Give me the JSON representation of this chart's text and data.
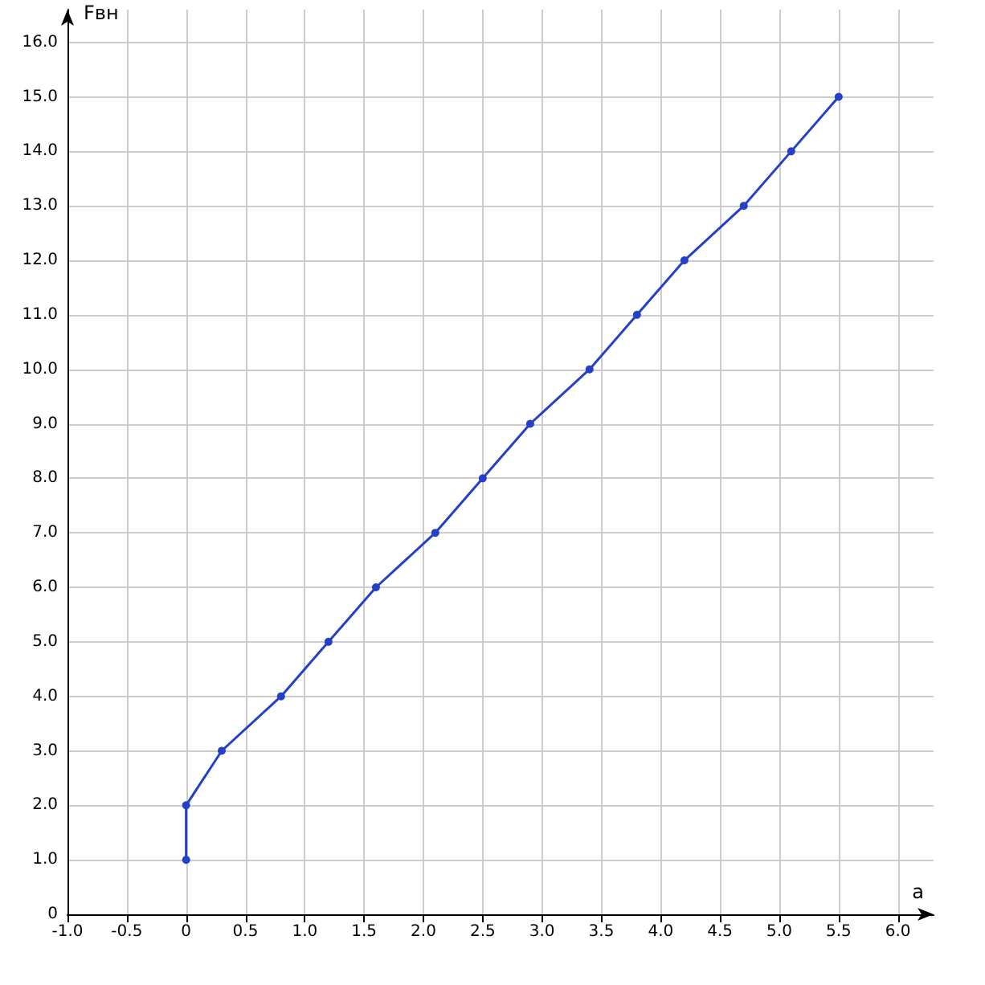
{
  "chart_data": {
    "type": "line",
    "xlabel": "a",
    "ylabel": "Fвн",
    "x": [
      0,
      0,
      0.3,
      0.8,
      1.2,
      1.6,
      2.1,
      2.5,
      2.9,
      3.4,
      3.8,
      4.2,
      4.7,
      5.1,
      5.5
    ],
    "series": [
      {
        "color": "#2440c8",
        "values": [
          1,
          2,
          3,
          4,
          5,
          6,
          7,
          8,
          9,
          10,
          11,
          12,
          13,
          14,
          15
        ]
      }
    ],
    "xlim": [
      -1,
      6.3
    ],
    "xticks": [
      {
        "value": -1,
        "label": "-1.0"
      },
      -0.5,
      0,
      0.5,
      {
        "value": 1,
        "label": "1.0"
      },
      1.5,
      {
        "value": 2,
        "label": "2.0"
      },
      2.5,
      {
        "value": 3,
        "label": "3.0"
      },
      3.5,
      {
        "value": 4,
        "label": "4.0"
      },
      4.5,
      {
        "value": 5,
        "label": "5.0"
      },
      5.5,
      {
        "value": 6,
        "label": "6.0"
      }
    ],
    "ylim": [
      0,
      16.6
    ],
    "yticks": [
      0,
      {
        "value": 1,
        "label": "1.0"
      },
      {
        "value": 2,
        "label": "2.0"
      },
      {
        "value": 3,
        "label": "3.0"
      },
      {
        "value": 4,
        "label": "4.0"
      },
      {
        "value": 5,
        "label": "5.0"
      },
      {
        "value": 6,
        "label": "6.0"
      },
      {
        "value": 7,
        "label": "7.0"
      },
      {
        "value": 8,
        "label": "8.0"
      },
      {
        "value": 9,
        "label": "9.0"
      },
      {
        "value": 10,
        "label": "10.0"
      },
      {
        "value": 11,
        "label": "11.0"
      },
      {
        "value": 12,
        "label": "12.0"
      },
      {
        "value": 13,
        "label": "13.0"
      },
      {
        "value": 14,
        "label": "14.0"
      },
      {
        "value": 15,
        "label": "15.0"
      },
      {
        "value": 16,
        "label": "16.0"
      }
    ],
    "grid": true,
    "marker": "circle",
    "line_style": "solid"
  }
}
